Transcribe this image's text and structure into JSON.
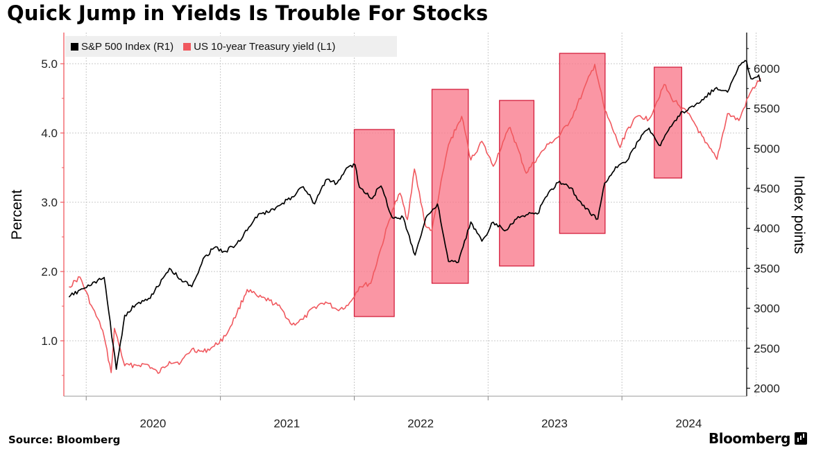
{
  "title": "Quick Jump in Yields Is Trouble For Stocks",
  "source": "Source: Bloomberg",
  "brand": "Bloomberg",
  "colors": {
    "sp500": "#000000",
    "yield": "#f0585e",
    "highlight_fill": "#f9788a",
    "highlight_stroke": "#d41e3c",
    "grid": "#c8c8c8",
    "legend_bg": "#efefef"
  },
  "chart_data": {
    "type": "line",
    "title": "Quick Jump in Yields Is Trouble For Stocks",
    "xlabel": "",
    "ylabel_left": "Percent",
    "ylabel_right": "Index points",
    "x_ticks": [
      "2020",
      "2021",
      "2022",
      "2023",
      "2024"
    ],
    "ylim_left": [
      0.2,
      5.45
    ],
    "ylim_right": [
      1900,
      6450
    ],
    "y_ticks_left": [
      "1.0",
      "2.0",
      "3.0",
      "4.0",
      "5.0"
    ],
    "y_ticks_right": [
      "2000",
      "2500",
      "3000",
      "3500",
      "4000",
      "4500",
      "5000",
      "5500",
      "6000"
    ],
    "grid": true,
    "legend": "top-left",
    "series": [
      {
        "name": "S&P 500 Index (R1)",
        "axis": "right",
        "points": [
          [
            "2019-11",
            3140
          ],
          [
            "2019-12",
            3230
          ],
          [
            "2020-01",
            3290
          ],
          [
            "2020-02-19",
            3386
          ],
          [
            "2020-03-23",
            2237
          ],
          [
            "2020-04",
            2912
          ],
          [
            "2020-05",
            3044
          ],
          [
            "2020-06",
            3100
          ],
          [
            "2020-07",
            3271
          ],
          [
            "2020-08",
            3500
          ],
          [
            "2020-09",
            3363
          ],
          [
            "2020-10",
            3270
          ],
          [
            "2020-11",
            3622
          ],
          [
            "2020-12",
            3756
          ],
          [
            "2021-01",
            3714
          ],
          [
            "2021-02",
            3811
          ],
          [
            "2021-03",
            3973
          ],
          [
            "2021-04",
            4181
          ],
          [
            "2021-05",
            4204
          ],
          [
            "2021-06",
            4297
          ],
          [
            "2021-07",
            4395
          ],
          [
            "2021-08",
            4522
          ],
          [
            "2021-09",
            4307
          ],
          [
            "2021-10",
            4605
          ],
          [
            "2021-11",
            4567
          ],
          [
            "2021-12",
            4766
          ],
          [
            "2022-01-03",
            4796
          ],
          [
            "2022-01",
            4516
          ],
          [
            "2022-02",
            4374
          ],
          [
            "2022-03",
            4530
          ],
          [
            "2022-04",
            4132
          ],
          [
            "2022-05",
            4132
          ],
          [
            "2022-06-16",
            3666
          ],
          [
            "2022-07",
            4130
          ],
          [
            "2022-08-16",
            4305
          ],
          [
            "2022-09",
            3586
          ],
          [
            "2022-10-12",
            3577
          ],
          [
            "2022-11",
            4080
          ],
          [
            "2022-12",
            3840
          ],
          [
            "2023-01",
            4077
          ],
          [
            "2023-02",
            3970
          ],
          [
            "2023-03",
            4109
          ],
          [
            "2023-04",
            4169
          ],
          [
            "2023-05",
            4180
          ],
          [
            "2023-06",
            4450
          ],
          [
            "2023-07",
            4589
          ],
          [
            "2023-08",
            4508
          ],
          [
            "2023-09",
            4288
          ],
          [
            "2023-10-27",
            4117
          ],
          [
            "2023-11",
            4568
          ],
          [
            "2023-12",
            4770
          ],
          [
            "2024-01",
            4846
          ],
          [
            "2024-02",
            5096
          ],
          [
            "2024-03",
            5254
          ],
          [
            "2024-04",
            5036
          ],
          [
            "2024-05",
            5278
          ],
          [
            "2024-06",
            5460
          ],
          [
            "2024-07",
            5522
          ],
          [
            "2024-08",
            5648
          ],
          [
            "2024-09",
            5762
          ],
          [
            "2024-10",
            5705
          ],
          [
            "2024-11",
            6032
          ],
          [
            "2024-12-06",
            6090
          ],
          [
            "2024-12-18",
            5872
          ],
          [
            "2025-01-08",
            5920
          ],
          [
            "2025-01-13",
            5836
          ]
        ]
      },
      {
        "name": "US 10-year Treasury yield (L1)",
        "axis": "left",
        "points": [
          [
            "2019-11",
            1.78
          ],
          [
            "2019-12",
            1.92
          ],
          [
            "2020-01",
            1.51
          ],
          [
            "2020-02",
            1.15
          ],
          [
            "2020-03-09",
            0.54
          ],
          [
            "2020-03-18",
            1.18
          ],
          [
            "2020-04",
            0.64
          ],
          [
            "2020-05",
            0.65
          ],
          [
            "2020-06",
            0.66
          ],
          [
            "2020-07",
            0.53
          ],
          [
            "2020-08",
            0.7
          ],
          [
            "2020-09",
            0.69
          ],
          [
            "2020-10",
            0.88
          ],
          [
            "2020-11",
            0.84
          ],
          [
            "2020-12",
            0.92
          ],
          [
            "2021-01",
            1.07
          ],
          [
            "2021-02",
            1.4
          ],
          [
            "2021-03",
            1.74
          ],
          [
            "2021-04",
            1.63
          ],
          [
            "2021-05",
            1.58
          ],
          [
            "2021-06",
            1.47
          ],
          [
            "2021-07",
            1.23
          ],
          [
            "2021-08",
            1.31
          ],
          [
            "2021-09",
            1.49
          ],
          [
            "2021-10",
            1.56
          ],
          [
            "2021-11",
            1.45
          ],
          [
            "2021-12",
            1.51
          ],
          [
            "2022-01",
            1.78
          ],
          [
            "2022-02",
            1.83
          ],
          [
            "2022-03",
            2.34
          ],
          [
            "2022-04",
            2.89
          ],
          [
            "2022-05-06",
            3.13
          ],
          [
            "2022-05-26",
            2.75
          ],
          [
            "2022-06-14",
            3.48
          ],
          [
            "2022-07",
            2.65
          ],
          [
            "2022-08-01",
            2.6
          ],
          [
            "2022-09",
            3.83
          ],
          [
            "2022-10-21",
            4.24
          ],
          [
            "2022-11",
            3.61
          ],
          [
            "2022-12",
            3.88
          ],
          [
            "2023-01",
            3.52
          ],
          [
            "2023-02",
            3.92
          ],
          [
            "2023-03-02",
            4.08
          ],
          [
            "2023-04",
            3.42
          ],
          [
            "2023-05",
            3.64
          ],
          [
            "2023-06",
            3.84
          ],
          [
            "2023-07",
            3.96
          ],
          [
            "2023-08",
            4.2
          ],
          [
            "2023-09",
            4.57
          ],
          [
            "2023-10-19",
            4.99
          ],
          [
            "2023-11",
            4.33
          ],
          [
            "2023-12-27",
            3.79
          ],
          [
            "2024-01",
            4.05
          ],
          [
            "2024-02",
            4.25
          ],
          [
            "2024-03",
            4.2
          ],
          [
            "2024-04-25",
            4.7
          ],
          [
            "2024-05",
            4.5
          ],
          [
            "2024-06",
            4.36
          ],
          [
            "2024-07",
            4.16
          ],
          [
            "2024-08",
            3.86
          ],
          [
            "2024-09-16",
            3.62
          ],
          [
            "2024-10",
            4.28
          ],
          [
            "2024-11",
            4.18
          ],
          [
            "2024-12",
            4.57
          ],
          [
            "2025-01-13",
            4.79
          ]
        ]
      }
    ],
    "highlight_periods": [
      {
        "start": "2022-01-01",
        "end": "2022-04-20",
        "yield_low": 1.35,
        "yield_high": 4.05
      },
      {
        "start": "2022-08-01",
        "end": "2022-11-08",
        "yield_low": 1.83,
        "yield_high": 4.63
      },
      {
        "start": "2023-02-01",
        "end": "2023-05-06",
        "yield_low": 2.08,
        "yield_high": 4.47
      },
      {
        "start": "2023-07-15",
        "end": "2023-11-16",
        "yield_low": 2.55,
        "yield_high": 5.15
      },
      {
        "start": "2024-03-29",
        "end": "2024-06-12",
        "yield_low": 3.35,
        "yield_high": 4.95
      }
    ]
  }
}
